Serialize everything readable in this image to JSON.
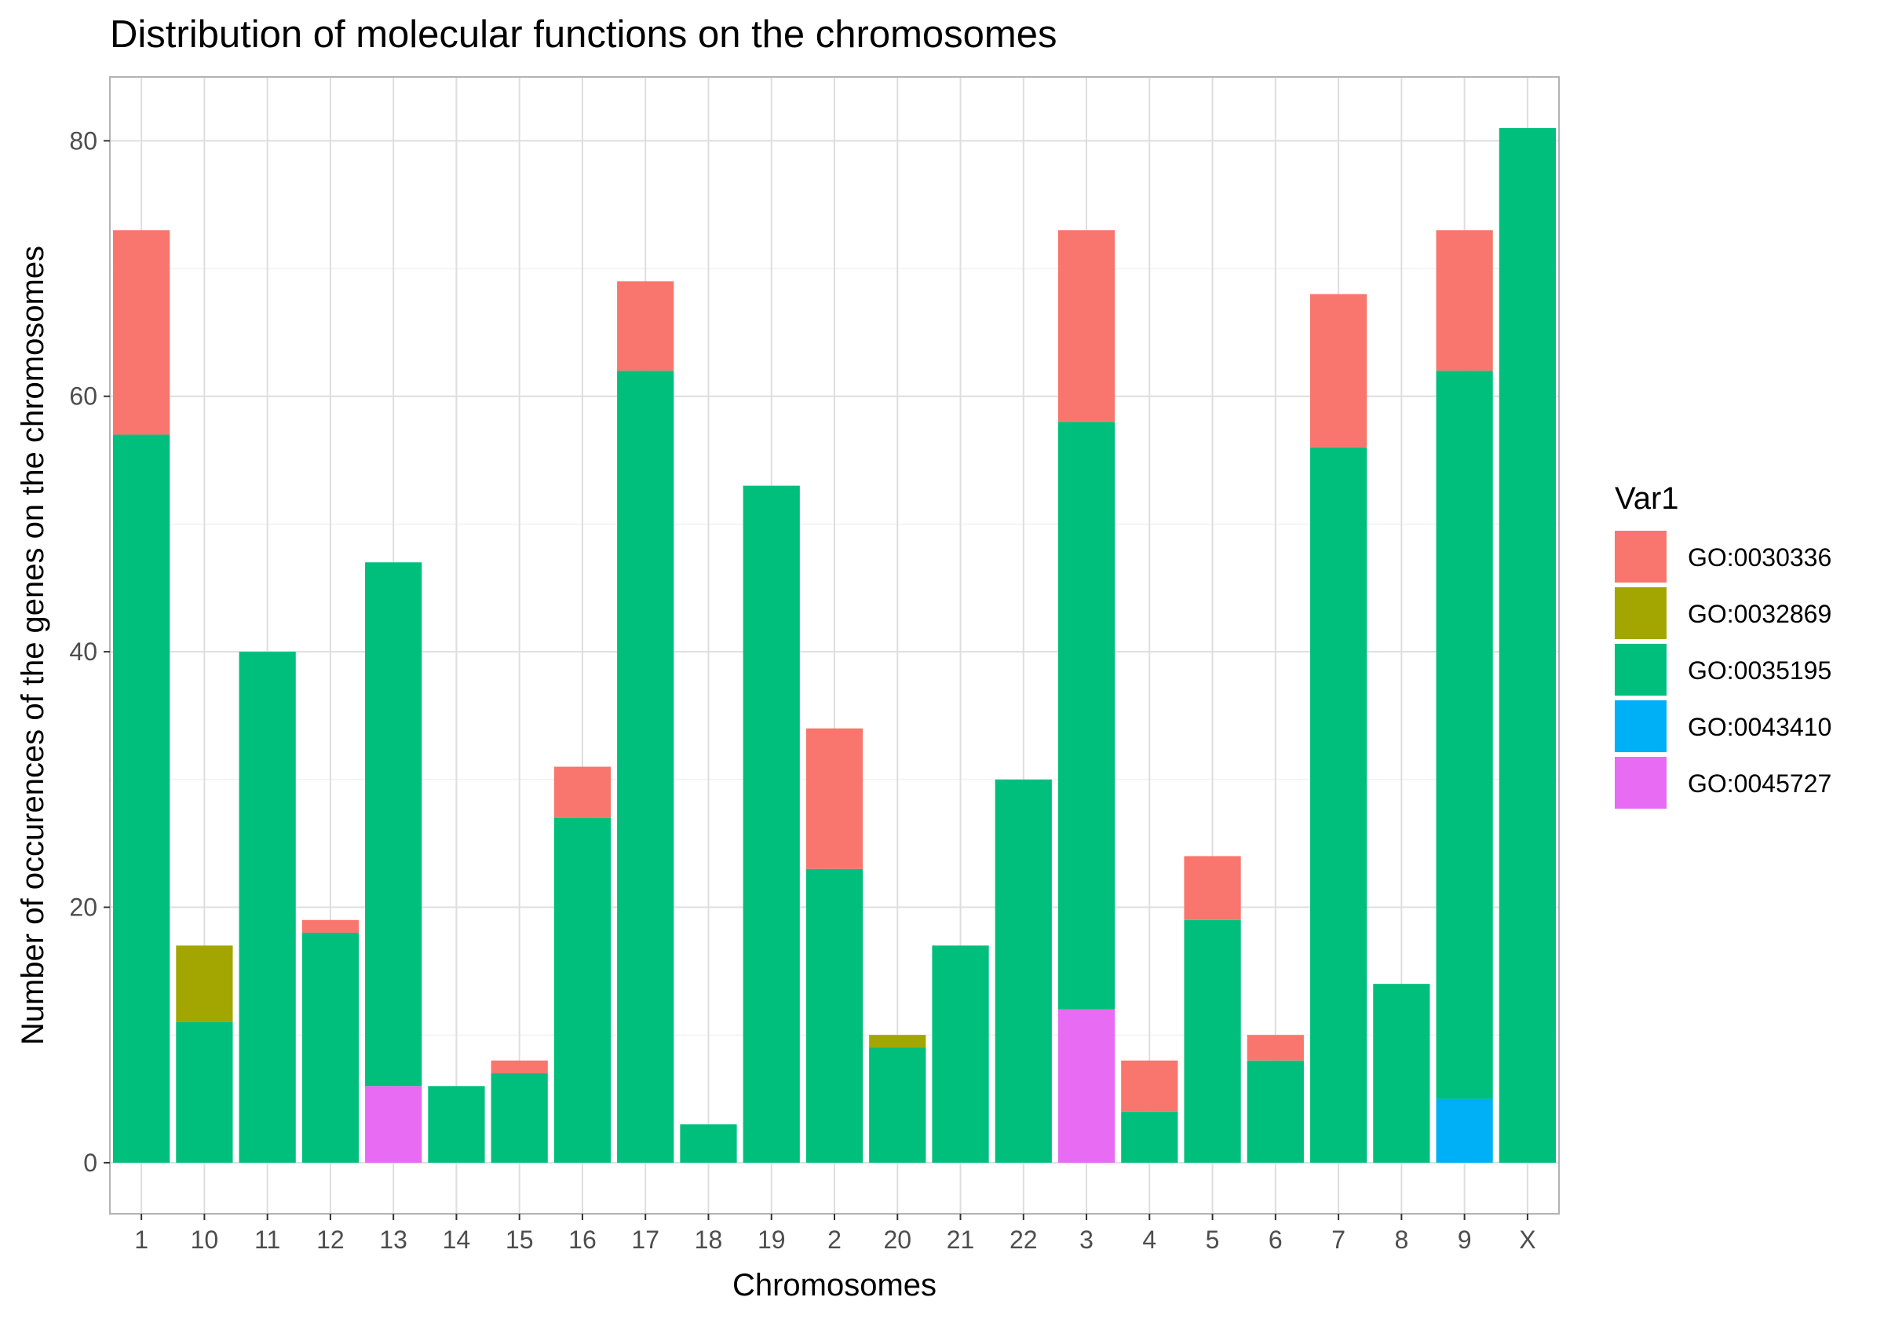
{
  "chart_data": {
    "type": "bar",
    "stacked": true,
    "title": "Distribution of molecular functions on the chromosomes",
    "xlabel": "Chromosomes",
    "ylabel": "Number of occurences of the genes on the chromosomes",
    "categories": [
      "1",
      "10",
      "11",
      "12",
      "13",
      "14",
      "15",
      "16",
      "17",
      "18",
      "19",
      "2",
      "20",
      "21",
      "22",
      "3",
      "4",
      "5",
      "6",
      "7",
      "8",
      "9",
      "X"
    ],
    "ylim": [
      -4,
      85
    ],
    "yticks": [
      0,
      20,
      40,
      60,
      80
    ],
    "grid": true,
    "legend": {
      "title": "Var1",
      "position": "right"
    },
    "series": [
      {
        "name": "GO:0043410",
        "color": "#00B0F6",
        "values": [
          0,
          0,
          0,
          0,
          0,
          0,
          0,
          0,
          0,
          0,
          0,
          0,
          0,
          0,
          0,
          0,
          0,
          0,
          0,
          0,
          0,
          5,
          0
        ]
      },
      {
        "name": "GO:0045727",
        "color": "#E76BF3",
        "values": [
          0,
          0,
          0,
          0,
          6,
          0,
          0,
          0,
          0,
          0,
          0,
          0,
          0,
          0,
          0,
          12,
          0,
          0,
          0,
          0,
          0,
          0,
          0
        ]
      },
      {
        "name": "GO:0035195",
        "color": "#00BF7D",
        "values": [
          57,
          11,
          40,
          18,
          41,
          6,
          7,
          27,
          62,
          3,
          53,
          23,
          9,
          17,
          30,
          46,
          4,
          19,
          8,
          56,
          14,
          57,
          81
        ]
      },
      {
        "name": "GO:0032869",
        "color": "#A3A500",
        "values": [
          0,
          6,
          0,
          0,
          0,
          0,
          0,
          0,
          0,
          0,
          0,
          0,
          1,
          0,
          0,
          0,
          0,
          0,
          0,
          0,
          0,
          0,
          0
        ]
      },
      {
        "name": "GO:0030336",
        "color": "#F8766D",
        "values": [
          16,
          0,
          0,
          1,
          0,
          0,
          1,
          4,
          7,
          0,
          0,
          11,
          0,
          0,
          0,
          15,
          4,
          5,
          2,
          12,
          0,
          11,
          0
        ]
      }
    ],
    "legend_order": [
      "GO:0030336",
      "GO:0032869",
      "GO:0035195",
      "GO:0043410",
      "GO:0045727"
    ]
  }
}
